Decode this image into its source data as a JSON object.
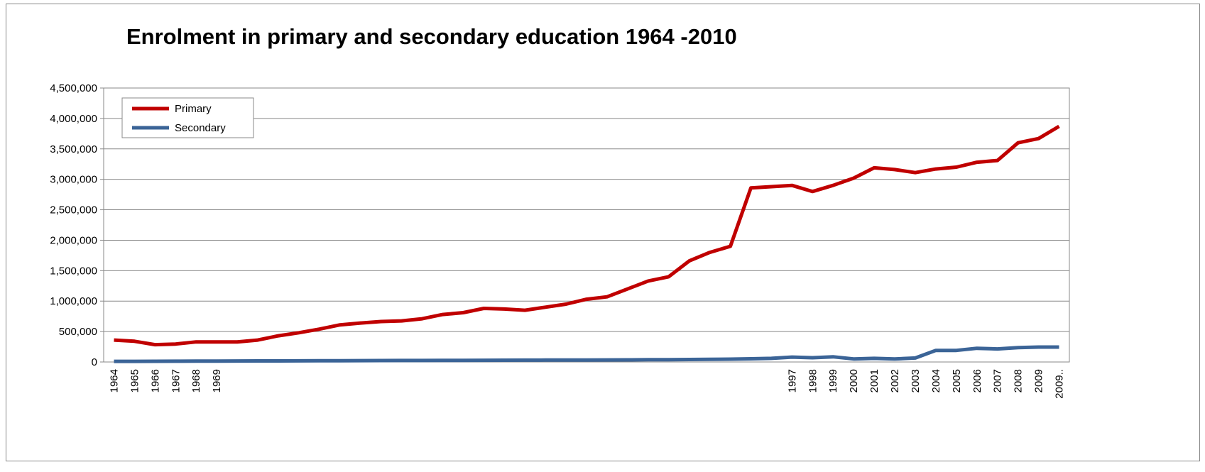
{
  "chart_data": {
    "type": "line",
    "title": "Enrolment  in primary and secondary education 1964 -2010",
    "categories": [
      "1964",
      "1965",
      "1966",
      "1967",
      "1968",
      "1969",
      null,
      null,
      null,
      null,
      null,
      null,
      null,
      null,
      null,
      null,
      null,
      null,
      null,
      null,
      null,
      null,
      null,
      null,
      null,
      null,
      null,
      null,
      null,
      null,
      null,
      null,
      null,
      "1997",
      "1998",
      "1999",
      "2000",
      "2001",
      "2002",
      "2003",
      "2004",
      "2005",
      "2006",
      "2007",
      "2008",
      "2009",
      "2009.."
    ],
    "series": [
      {
        "name": "Primary",
        "color": "#c00000",
        "values": [
          360000,
          340000,
          285000,
          295000,
          330000,
          330000,
          330000,
          360000,
          430000,
          480000,
          540000,
          610000,
          640000,
          665000,
          675000,
          710000,
          780000,
          810000,
          880000,
          870000,
          850000,
          900000,
          950000,
          1030000,
          1070000,
          1200000,
          1330000,
          1400000,
          1660000,
          1800000,
          1900000,
          2860000,
          2880000,
          2900000,
          2800000,
          2900000,
          3020000,
          3190000,
          3160000,
          3110000,
          3170000,
          3200000,
          3280000,
          3310000,
          3600000,
          3670000,
          3870000
        ]
      },
      {
        "name": "Secondary",
        "color": "#3b6497",
        "values": [
          10000,
          11000,
          12000,
          13000,
          14000,
          15000,
          16000,
          17000,
          18000,
          19000,
          20000,
          21000,
          22000,
          23000,
          24000,
          25000,
          26000,
          27000,
          28000,
          29000,
          30000,
          31000,
          32000,
          33000,
          34000,
          35000,
          37000,
          39000,
          41000,
          44000,
          47000,
          52000,
          60000,
          80000,
          70000,
          85000,
          50000,
          60000,
          50000,
          65000,
          190000,
          190000,
          225000,
          215000,
          235000,
          245000,
          245000
        ]
      }
    ],
    "ylim": [
      0,
      4500000
    ],
    "yticks": [
      0,
      {
        "value": 500000,
        "label": "500,000"
      },
      {
        "value": 1000000,
        "label": "1,000,000"
      },
      {
        "value": 1500000,
        "label": "1,500,000"
      },
      {
        "value": 2000000,
        "label": "2,000,000"
      },
      {
        "value": 2500000,
        "label": "2,500,000"
      },
      {
        "value": 3000000,
        "label": "3,000,000"
      },
      {
        "value": 3500000,
        "label": "3,500,000"
      },
      {
        "value": 4000000,
        "label": "4,000,000"
      },
      {
        "value": 4500000,
        "label": "4,500,000"
      }
    ],
    "grid": true,
    "legend": "top-left"
  }
}
